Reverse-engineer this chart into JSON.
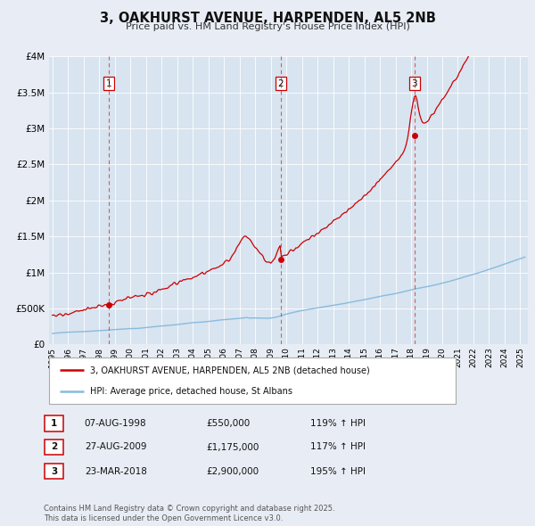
{
  "title": "3, OAKHURST AVENUE, HARPENDEN, AL5 2NB",
  "subtitle": "Price paid vs. HM Land Registry's House Price Index (HPI)",
  "bg_color": "#e8edf5",
  "plot_bg_color": "#d8e4f0",
  "xlim": [
    1994.8,
    2025.5
  ],
  "ylim": [
    0,
    4000000
  ],
  "yticks": [
    0,
    500000,
    1000000,
    1500000,
    2000000,
    2500000,
    3000000,
    3500000,
    4000000
  ],
  "ytick_labels": [
    "£0",
    "£500K",
    "£1M",
    "£1.5M",
    "£2M",
    "£2.5M",
    "£3M",
    "£3.5M",
    "£4M"
  ],
  "sale_dates": [
    1998.6,
    2009.65,
    2018.22
  ],
  "sale_prices": [
    550000,
    1175000,
    2900000
  ],
  "sale_labels": [
    "1",
    "2",
    "3"
  ],
  "vline_color": "#cc0000",
  "sale_dot_color": "#cc0000",
  "hpi_line_color": "#88bbdd",
  "price_line_color": "#cc0000",
  "legend_line1": "3, OAKHURST AVENUE, HARPENDEN, AL5 2NB (detached house)",
  "legend_line2": "HPI: Average price, detached house, St Albans",
  "table_rows": [
    [
      "1",
      "07-AUG-1998",
      "£550,000",
      "119% ↑ HPI"
    ],
    [
      "2",
      "27-AUG-2009",
      "£1,175,000",
      "117% ↑ HPI"
    ],
    [
      "3",
      "23-MAR-2018",
      "£2,900,000",
      "195% ↑ HPI"
    ]
  ],
  "footer": "Contains HM Land Registry data © Crown copyright and database right 2025.\nThis data is licensed under the Open Government Licence v3.0."
}
